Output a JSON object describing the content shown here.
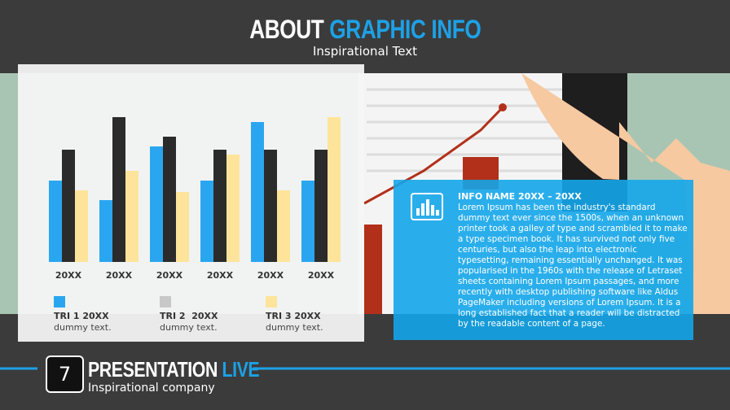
{
  "header": {
    "title_part1": "ABOUT",
    "title_part2": "GRAPHIC INFO",
    "subtitle": "Inspirational Text"
  },
  "chart_data": {
    "type": "bar",
    "categories": [
      "20XX",
      "20XX",
      "20XX",
      "20XX",
      "20XX",
      "20XX"
    ],
    "series": [
      {
        "name": "TRI 1 20XX",
        "color": "#2aa6f0",
        "values": [
          50,
          38,
          71,
          50,
          86,
          50
        ]
      },
      {
        "name": "TRI 2  20XX",
        "color": "#2b2b2b",
        "values": [
          69,
          89,
          77,
          69,
          69,
          69
        ]
      },
      {
        "name": "TRI 3 20XX",
        "color": "#fde49a",
        "values": [
          44,
          56,
          43,
          66,
          44,
          89
        ]
      }
    ],
    "legend_colors": [
      "#2aa6f0",
      "#c8c8c8",
      "#fde49a"
    ],
    "legend_notes": [
      "dummy text.",
      "dummy text.",
      "dummy text."
    ],
    "ylim": [
      0,
      100
    ]
  },
  "info": {
    "title": "INFO NAME 20XX – 20XX",
    "body": "Lorem Ipsum has been the industry's standard dummy text ever since the 1500s, when an unknown printer took a galley of type and scrambled it to make a type specimen book. It has survived not only five centuries, but also the leap into electronic typesetting, remaining essentially unchanged. It was popularised in the 1960s with the release of Letraset sheets containing Lorem Ipsum passages, and more recently with desktop publishing software like Aldus PageMaker including versions of Lorem Ipsum. It is a long established fact that a reader will be distracted by the readable content of a page."
  },
  "footer": {
    "number": "7",
    "title_part1": "PRESENTATION",
    "title_part2": "LIVE",
    "subtitle": "Inspirational company"
  }
}
